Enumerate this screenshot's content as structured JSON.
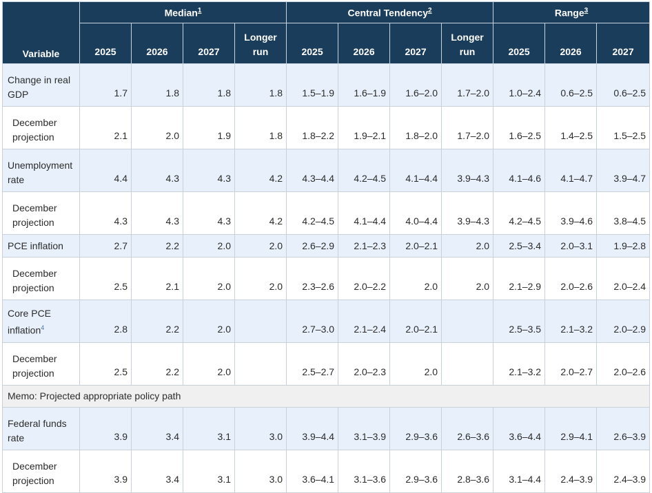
{
  "header": {
    "variable": "Variable",
    "groups": [
      {
        "label": "Median",
        "note": "1"
      },
      {
        "label": "Central Tendency",
        "note": "2"
      },
      {
        "label": "Range",
        "note": "3"
      }
    ],
    "years": [
      "2025",
      "2026",
      "2027",
      "Longer run",
      "2025",
      "2026",
      "2027",
      "Longer run",
      "2025",
      "2026",
      "2027"
    ]
  },
  "memo": "Memo: Projected appropriate policy path",
  "rows": [
    {
      "label": "Change in real GDP",
      "note": "",
      "cells": [
        "1.7",
        "1.8",
        "1.8",
        "1.8",
        "1.5–1.9",
        "1.6–1.9",
        "1.6–2.0",
        "1.7–2.0",
        "1.0–2.4",
        "0.6–2.5",
        "0.6–2.5"
      ]
    },
    {
      "label": "December projection",
      "note": "",
      "cells": [
        "2.1",
        "2.0",
        "1.9",
        "1.8",
        "1.8–2.2",
        "1.9–2.1",
        "1.8–2.0",
        "1.7–2.0",
        "1.6–2.5",
        "1.4–2.5",
        "1.5–2.5"
      ]
    },
    {
      "label": "Unemployment rate",
      "note": "",
      "cells": [
        "4.4",
        "4.3",
        "4.3",
        "4.2",
        "4.3–4.4",
        "4.2–4.5",
        "4.1–4.4",
        "3.9–4.3",
        "4.1–4.6",
        "4.1–4.7",
        "3.9–4.7"
      ]
    },
    {
      "label": "December projection",
      "note": "",
      "cells": [
        "4.3",
        "4.3",
        "4.3",
        "4.2",
        "4.2–4.5",
        "4.1–4.4",
        "4.0–4.4",
        "3.9–4.3",
        "4.2–4.5",
        "3.9–4.6",
        "3.8–4.5"
      ]
    },
    {
      "label": "PCE inflation",
      "note": "",
      "cells": [
        "2.7",
        "2.2",
        "2.0",
        "2.0",
        "2.6–2.9",
        "2.1–2.3",
        "2.0–2.1",
        "2.0",
        "2.5–3.4",
        "2.0–3.1",
        "1.9–2.8"
      ]
    },
    {
      "label": "December projection",
      "note": "",
      "cells": [
        "2.5",
        "2.1",
        "2.0",
        "2.0",
        "2.3–2.6",
        "2.0–2.2",
        "2.0",
        "2.0",
        "2.1–2.9",
        "2.0–2.6",
        "2.0–2.4"
      ]
    },
    {
      "label": "Core PCE inflation",
      "note": "4",
      "cells": [
        "2.8",
        "2.2",
        "2.0",
        "",
        "2.7–3.0",
        "2.1–2.4",
        "2.0–2.1",
        "",
        "2.5–3.5",
        "2.1–3.2",
        "2.0–2.9"
      ]
    },
    {
      "label": "December projection",
      "note": "",
      "cells": [
        "2.5",
        "2.2",
        "2.0",
        "",
        "2.5–2.7",
        "2.0–2.3",
        "2.0",
        "",
        "2.1–3.2",
        "2.0–2.7",
        "2.0–2.6"
      ]
    },
    {
      "label": "Federal funds rate",
      "note": "",
      "cells": [
        "3.9",
        "3.4",
        "3.1",
        "3.0",
        "3.9–4.4",
        "3.1–3.9",
        "2.9–3.6",
        "2.6–3.6",
        "3.6–4.4",
        "2.9–4.1",
        "2.6–3.9"
      ]
    },
    {
      "label": "December projection",
      "note": "",
      "cells": [
        "3.9",
        "3.4",
        "3.1",
        "3.0",
        "3.6–4.1",
        "3.1–3.6",
        "2.9–3.6",
        "2.8–3.6",
        "3.1–4.4",
        "2.4–3.9",
        "2.4–3.9"
      ]
    }
  ]
}
